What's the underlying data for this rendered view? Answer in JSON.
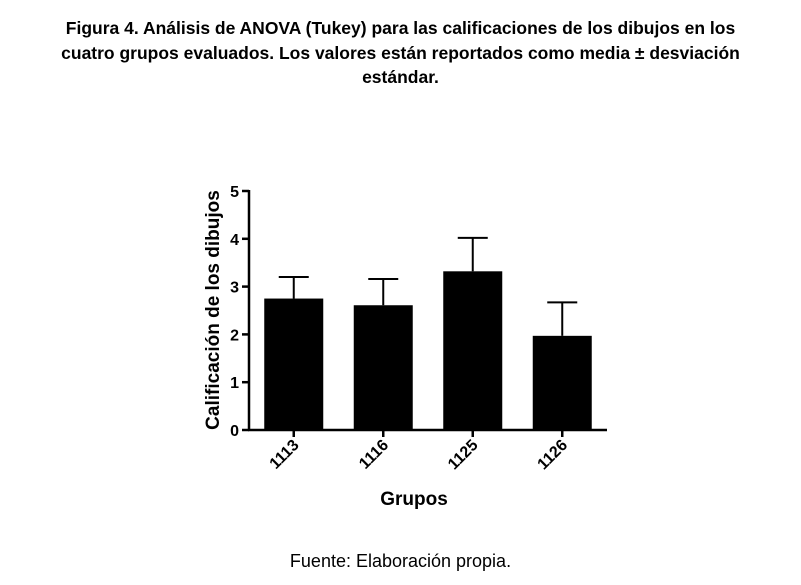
{
  "caption": {
    "line1": "Figura 4. Análisis de ANOVA (Tukey) para las calificaciones de los dibujos en los",
    "line2": "cuatro grupos evaluados. Los valores están reportados como media ± desviación",
    "line3": "estándar."
  },
  "source": "Fuente: Elaboración propia.",
  "chart_data": {
    "type": "bar",
    "categories": [
      "1113",
      "1116",
      "1125",
      "1126"
    ],
    "values": [
      2.75,
      2.61,
      3.32,
      1.97
    ],
    "error": [
      0.45,
      0.55,
      0.7,
      0.7
    ],
    "xlabel": "Grupos",
    "ylabel": "Calificación de los dibujos",
    "ylim": [
      0,
      5
    ],
    "yticks": [
      0,
      1,
      2,
      3,
      4,
      5
    ],
    "grid": false,
    "bar_color": "#000000"
  }
}
